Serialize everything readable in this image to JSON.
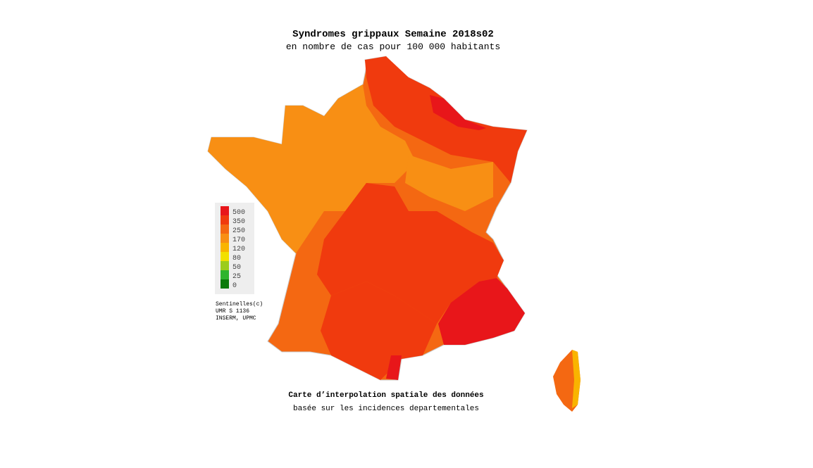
{
  "header": {
    "title": "Syndromes grippaux Semaine 2018s02",
    "subtitle": "en nombre de cas pour 100 000 habitants"
  },
  "legend": {
    "items": [
      {
        "label": "500",
        "color": "#e8161a"
      },
      {
        "label": "350",
        "color": "#f03a0e"
      },
      {
        "label": "250",
        "color": "#f46812"
      },
      {
        "label": "170",
        "color": "#f88f14"
      },
      {
        "label": "120",
        "color": "#f9b400"
      },
      {
        "label": "80",
        "color": "#f2e000"
      },
      {
        "label": "50",
        "color": "#9ccc1c"
      },
      {
        "label": "25",
        "color": "#2db42d"
      },
      {
        "label": "0",
        "color": "#0c7a0c"
      }
    ]
  },
  "credits": [
    "Sentinelles(c)",
    "UMR S 1136",
    "INSERM, UPMC"
  ],
  "footer": {
    "line1": "Carte d’interpolation spatiale des données",
    "line2": "basée sur les incidences departementales"
  }
}
